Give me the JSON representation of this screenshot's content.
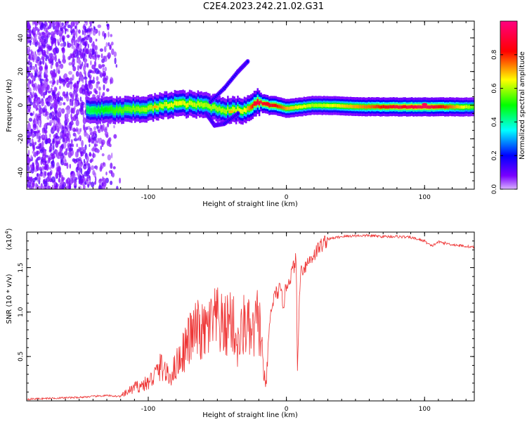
{
  "title": "C2E4.2023.242.21.02.G31",
  "chart_data": [
    {
      "type": "heatmap",
      "title": "C2E4.2023.242.21.02.G31",
      "xlabel": "Height of straight line (km)",
      "ylabel": "Frequency (Hz)",
      "xlim": [
        -188,
        136
      ],
      "ylim": [
        -50,
        50
      ],
      "xticks": [
        "-100",
        "0",
        "100"
      ],
      "yticks": [
        "-40",
        "-20",
        "0",
        "20",
        "40"
      ],
      "colorbar": {
        "label": "Normalized spectral amplitude",
        "ticks": [
          "0.0",
          "0.2",
          "0.4",
          "0.6",
          "0.8"
        ],
        "range": [
          0,
          1
        ],
        "colormap": [
          "#d9b3ff",
          "#7a00ff",
          "#0000ff",
          "#00ffff",
          "#00ff00",
          "#ffff00",
          "#ff0000",
          "#ff0080"
        ]
      },
      "ridge": [
        {
          "x": -145,
          "freq": -3,
          "amp": 0.45
        },
        {
          "x": -120,
          "freq": -3,
          "amp": 0.55
        },
        {
          "x": -100,
          "freq": -2,
          "amp": 0.6
        },
        {
          "x": -80,
          "freq": 1,
          "amp": 0.65
        },
        {
          "x": -60,
          "freq": 0,
          "amp": 0.6
        },
        {
          "x": -45,
          "freq": -3,
          "amp": 0.6
        },
        {
          "x": -30,
          "freq": -3,
          "amp": 0.65
        },
        {
          "x": -22,
          "freq": 2,
          "amp": 0.9
        },
        {
          "x": -10,
          "freq": 0,
          "amp": 0.85
        },
        {
          "x": 0,
          "freq": -2,
          "amp": 0.7
        },
        {
          "x": 20,
          "freq": 0,
          "amp": 0.6
        },
        {
          "x": 60,
          "freq": -1,
          "amp": 0.75
        },
        {
          "x": 80,
          "freq": -1,
          "amp": 0.9
        },
        {
          "x": 100,
          "freq": -1,
          "amp": 0.95
        },
        {
          "x": 136,
          "freq": -1,
          "amp": 0.55
        }
      ],
      "branches": [
        {
          "name": "",
          "points": [
            [
              -55,
              2
            ],
            [
              -45,
              10
            ],
            [
              -35,
              20
            ],
            [
              -28,
              26
            ]
          ]
        },
        {
          "name": "",
          "points": [
            [
              -58,
              -5
            ],
            [
              -52,
              -12
            ],
            [
              -45,
              -11
            ],
            [
              -35,
              -5
            ]
          ]
        }
      ]
    },
    {
      "type": "line",
      "xlabel": "Height of straight line (km)",
      "ylabel": "SNR (10 * v/v)",
      "yscale_label": "(x10",
      "yscale_exp": "4",
      "yscale_suffix": ")",
      "xlim": [
        -188,
        136
      ],
      "ylim": [
        0,
        1.9
      ],
      "xticks": [
        "-100",
        "0",
        "100"
      ],
      "yticks": [
        "0.5",
        "1.0",
        "1.5"
      ],
      "color": "#ee3333",
      "series": [
        {
          "name": "",
          "x": [
            -188,
            -170,
            -150,
            -130,
            -120,
            -115,
            -110,
            -100,
            -95,
            -90,
            -85,
            -80,
            -75,
            -70,
            -65,
            -60,
            -55,
            -50,
            -45,
            -40,
            -35,
            -30,
            -25,
            -20,
            -15,
            -12,
            -10,
            -8,
            -5,
            -2,
            0,
            3,
            5,
            7,
            8,
            10,
            15,
            20,
            25,
            30,
            40,
            50,
            60,
            70,
            80,
            90,
            100,
            105,
            110,
            120,
            130,
            136
          ],
          "y": [
            0.02,
            0.03,
            0.04,
            0.06,
            0.05,
            0.1,
            0.15,
            0.2,
            0.3,
            0.4,
            0.25,
            0.4,
            0.55,
            0.7,
            0.8,
            0.75,
            0.85,
            0.9,
            0.8,
            0.95,
            0.6,
            0.9,
            0.7,
            0.95,
            0.1,
            0.9,
            1.1,
            1.2,
            1.25,
            1.1,
            1.3,
            1.4,
            1.5,
            1.6,
            0.35,
            1.45,
            1.55,
            1.65,
            1.75,
            1.82,
            1.85,
            1.86,
            1.86,
            1.85,
            1.85,
            1.84,
            1.8,
            1.74,
            1.79,
            1.76,
            1.74,
            1.73
          ]
        }
      ]
    }
  ]
}
